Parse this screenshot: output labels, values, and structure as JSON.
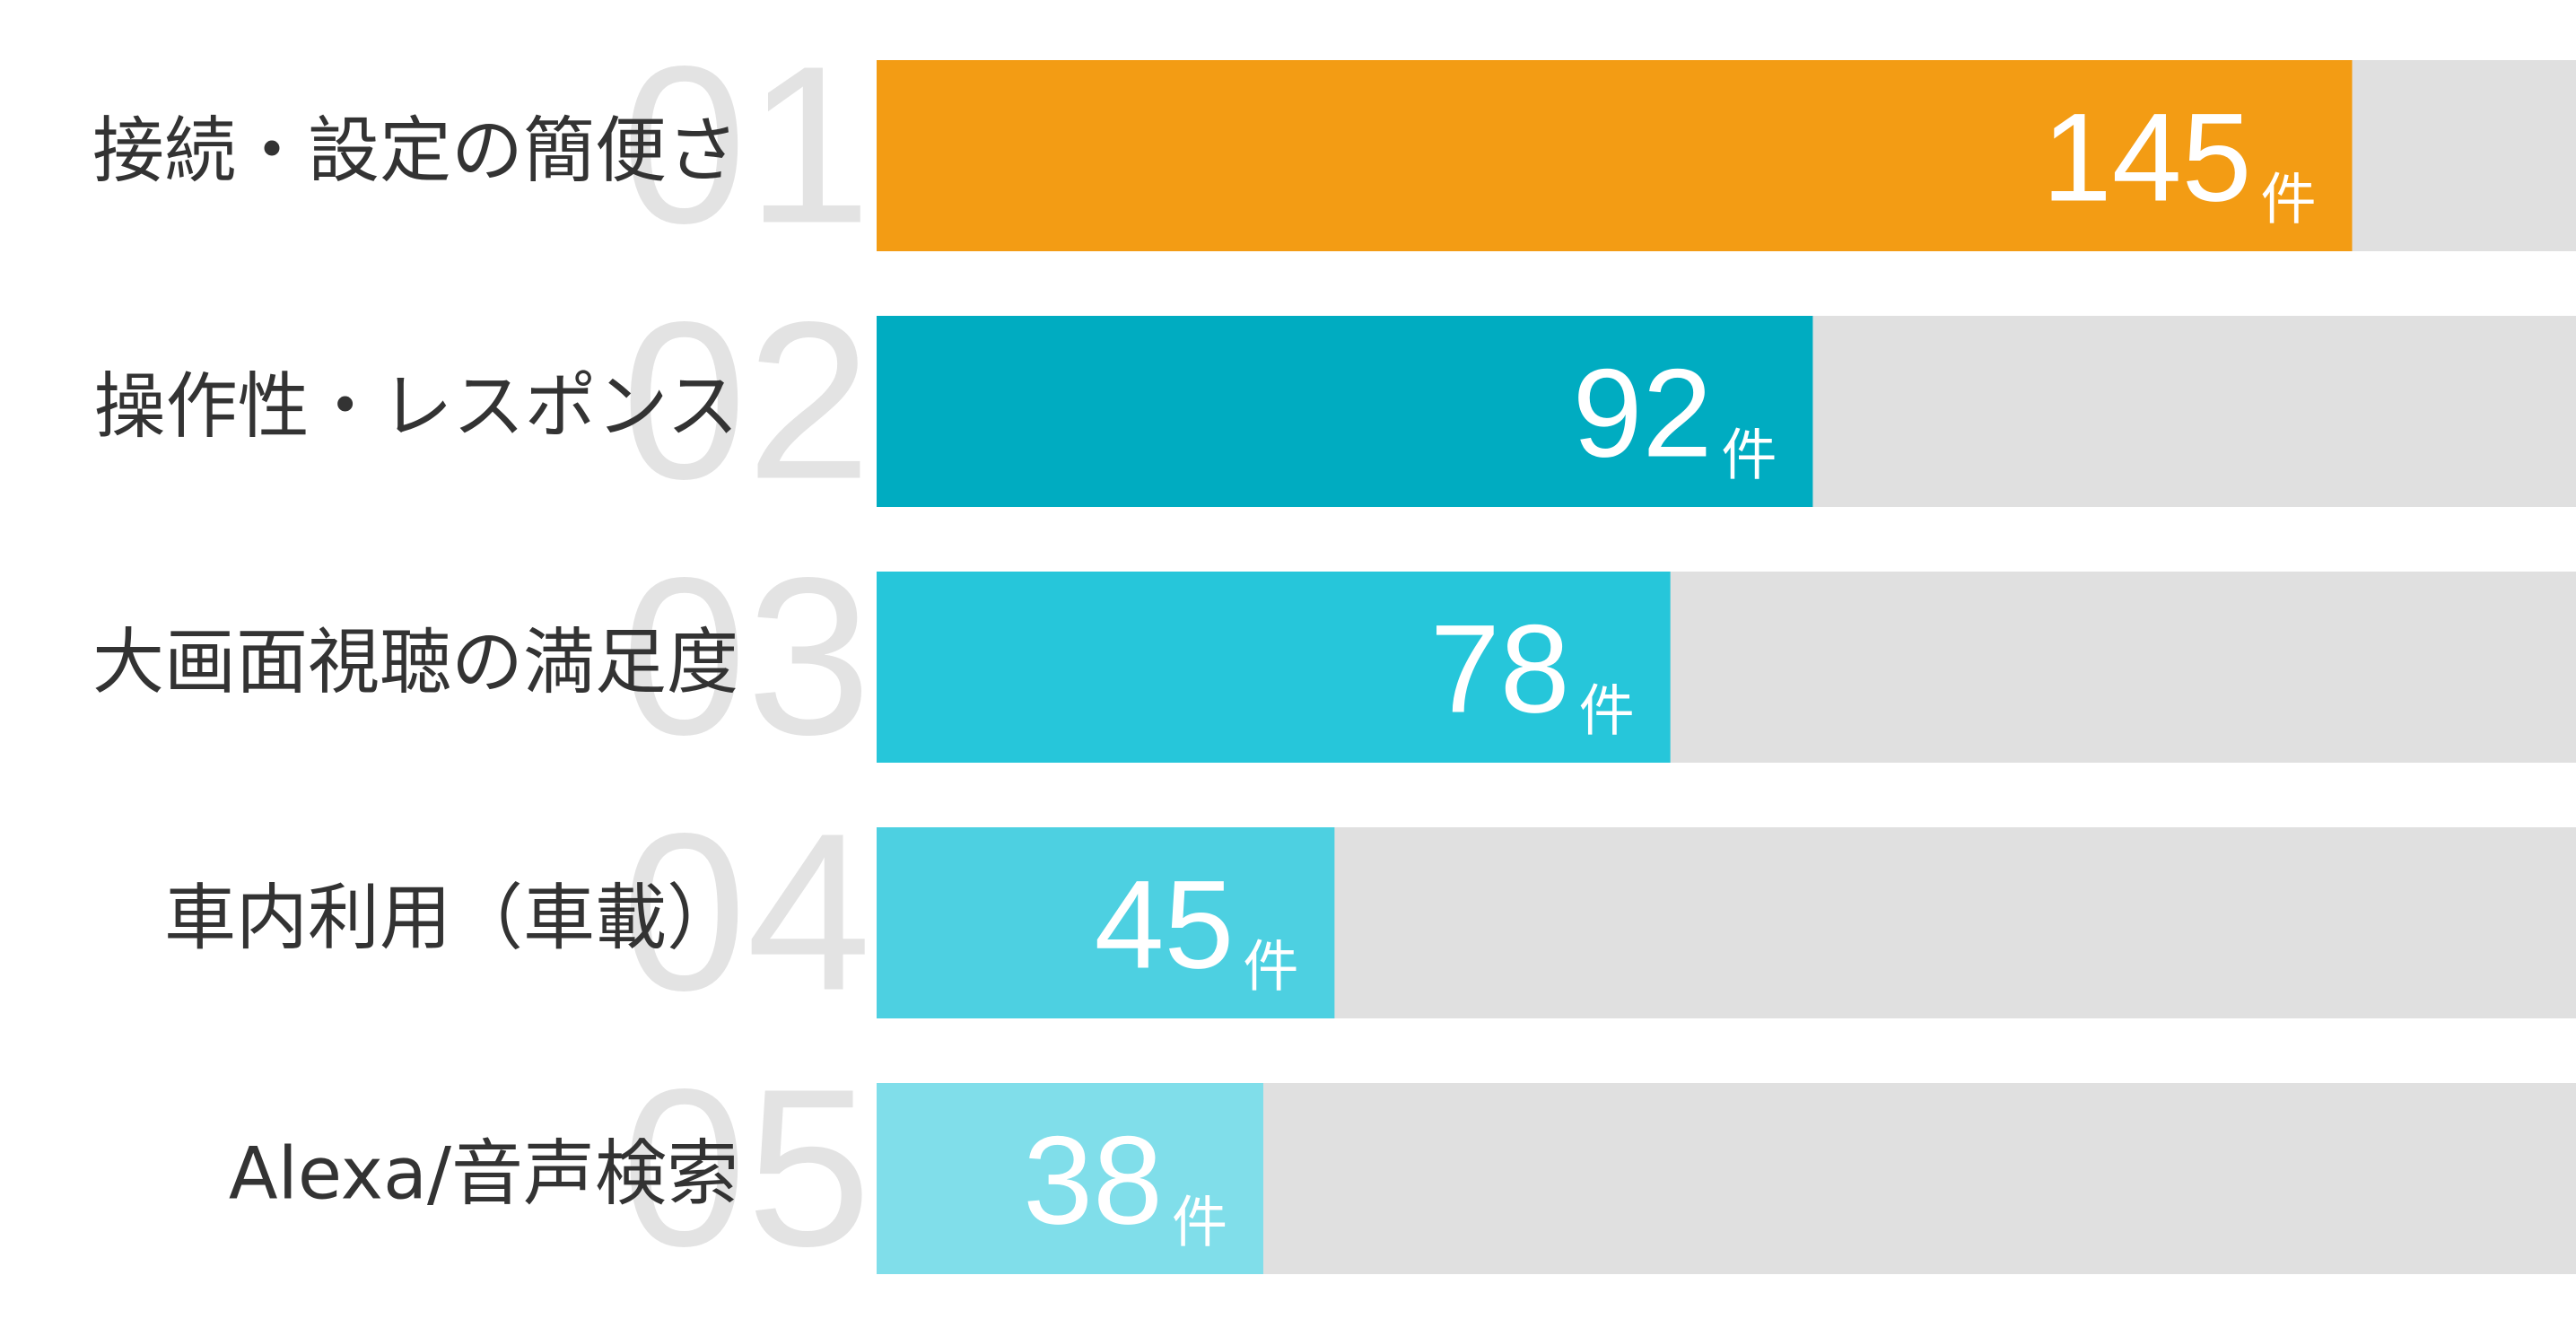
{
  "chart_data": {
    "type": "bar",
    "orientation": "horizontal",
    "categories": [
      "接続・設定の簡便さ",
      "操作性・レスポンス",
      "大画面視聴の満足度",
      "車内利用（車載）",
      "Alexa/音声検索"
    ],
    "ranks": [
      "01",
      "02",
      "03",
      "04",
      "05"
    ],
    "values": [
      145,
      92,
      78,
      45,
      38
    ],
    "unit": "件",
    "colors": [
      "#f39c14",
      "#00acc1",
      "#26c6da",
      "#4dd0e1",
      "#80deea"
    ],
    "track_color": "#e0e0e0",
    "xlim": [
      0,
      167
    ]
  }
}
